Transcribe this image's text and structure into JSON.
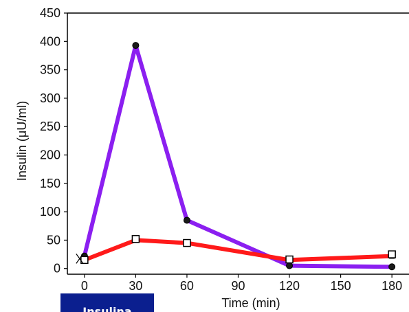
{
  "chart_data": {
    "type": "line",
    "title": "",
    "xlabel": "Time (min)",
    "ylabel": "Insulin (μU/ml)",
    "x": [
      0,
      30,
      60,
      120,
      180
    ],
    "xticks": [
      0,
      30,
      60,
      90,
      120,
      150,
      180
    ],
    "xlim": [
      -10,
      190
    ],
    "yticks": [
      0,
      50,
      100,
      150,
      200,
      250,
      300,
      350,
      400,
      450
    ],
    "ylim": [
      -10,
      450
    ],
    "grid": false,
    "legend": "none",
    "series": [
      {
        "color": "#8b1ff0",
        "marker": "circle",
        "values": [
          22,
          393,
          85,
          5,
          3
        ]
      },
      {
        "color": "#ff1a1a",
        "marker": "square",
        "values": [
          15,
          50,
          45,
          15,
          22
        ]
      }
    ],
    "open_markers": [
      {
        "x": 0,
        "y": 15
      },
      {
        "x": 30,
        "y": 52
      },
      {
        "x": 60,
        "y": 45
      },
      {
        "x": 120,
        "y": 16
      },
      {
        "x": 180,
        "y": 25
      }
    ]
  },
  "tag": {
    "text": "Insulina",
    "background": "#0b1f8f"
  }
}
